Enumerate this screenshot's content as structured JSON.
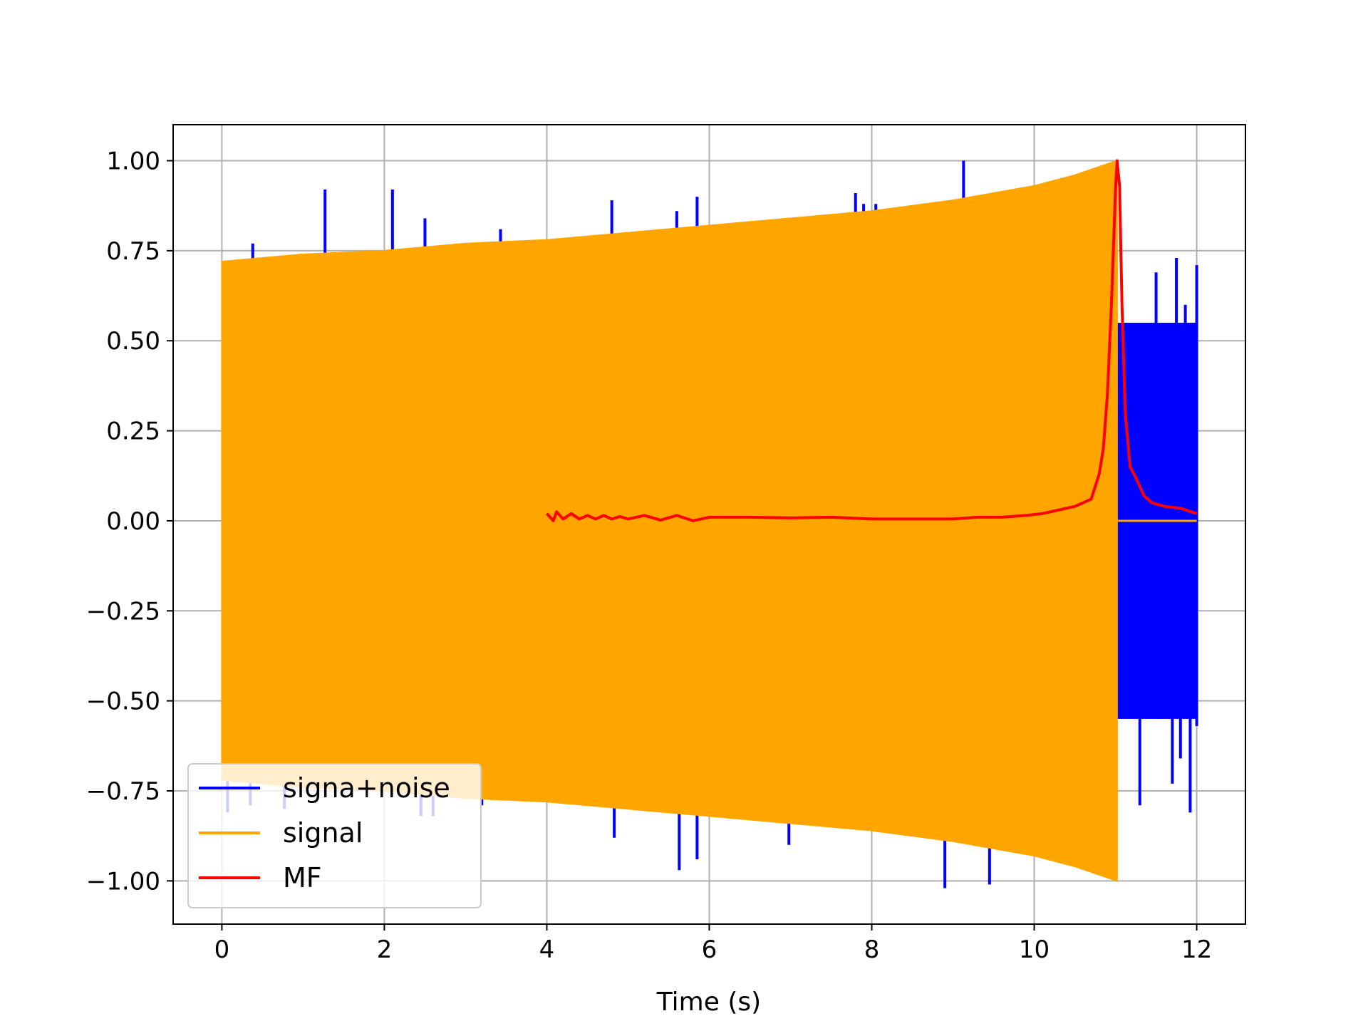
{
  "chart_data": {
    "type": "line",
    "title": "",
    "xlabel": "Time (s)",
    "ylabel": "",
    "xlim": [
      -0.6,
      12.6
    ],
    "ylim": [
      -1.12,
      1.1
    ],
    "xticks": [
      0,
      2,
      4,
      6,
      8,
      10,
      12
    ],
    "xtick_labels": [
      "0",
      "2",
      "4",
      "6",
      "8",
      "10",
      "12"
    ],
    "yticks": [
      1.0,
      0.75,
      0.5,
      0.25,
      0.0,
      -0.25,
      -0.5,
      -0.75,
      -1.0
    ],
    "ytick_labels": [
      "1.00",
      "0.75",
      "0.50",
      "0.25",
      "0.00",
      "−0.25",
      "−0.50",
      "−0.75",
      "−1.00"
    ],
    "grid": true,
    "legend_position": "lower-left",
    "series": [
      {
        "name": "signa+noise",
        "color": "#0000ff",
        "description_points": {
          "spikes_up": [
            [
              0.38,
              0.77
            ],
            [
              1.27,
              0.92
            ],
            [
              2.1,
              0.92
            ],
            [
              2.5,
              0.84
            ],
            [
              3.43,
              0.81
            ],
            [
              4.8,
              0.89
            ],
            [
              5.6,
              0.86
            ],
            [
              5.85,
              0.9
            ],
            [
              7.8,
              0.91
            ],
            [
              7.9,
              0.88
            ],
            [
              8.05,
              0.88
            ],
            [
              9.13,
              1.0
            ]
          ],
          "spikes_down": [
            [
              0.07,
              -0.81
            ],
            [
              0.35,
              -0.79
            ],
            [
              0.77,
              -0.8
            ],
            [
              2.45,
              -0.82
            ],
            [
              2.6,
              -0.82
            ],
            [
              3.2,
              -0.79
            ],
            [
              4.83,
              -0.88
            ],
            [
              5.63,
              -0.97
            ],
            [
              5.85,
              -0.94
            ],
            [
              6.98,
              -0.9
            ],
            [
              8.9,
              -1.02
            ],
            [
              9.45,
              -1.01
            ]
          ],
          "tail_start": 11.02,
          "tail_end": 12.0,
          "tail_peaks": [
            [
              11.05,
              0.5
            ],
            [
              11.12,
              -0.48
            ],
            [
              11.2,
              0.44
            ],
            [
              11.3,
              -0.79
            ],
            [
              11.37,
              0.51
            ],
            [
              11.45,
              -0.5
            ],
            [
              11.5,
              0.69
            ],
            [
              11.55,
              -0.55
            ],
            [
              11.6,
              0.52
            ],
            [
              11.7,
              -0.73
            ],
            [
              11.75,
              0.73
            ],
            [
              11.8,
              -0.66
            ],
            [
              11.86,
              0.6
            ],
            [
              11.92,
              -0.81
            ],
            [
              11.96,
              0.55
            ],
            [
              12.0,
              0.71
            ],
            [
              12.0,
              -0.57
            ]
          ]
        }
      },
      {
        "name": "signal",
        "color": "#ffa500",
        "envelope": {
          "x": [
            0.0,
            1,
            2,
            3,
            4,
            5,
            6,
            7,
            8,
            9,
            10,
            10.5,
            11.02
          ],
          "upper": [
            0.72,
            0.74,
            0.75,
            0.77,
            0.78,
            0.8,
            0.82,
            0.84,
            0.86,
            0.89,
            0.93,
            0.96,
            1.0
          ],
          "lower": [
            -0.72,
            -0.74,
            -0.75,
            -0.77,
            -0.78,
            -0.8,
            -0.82,
            -0.84,
            -0.86,
            -0.89,
            -0.93,
            -0.96,
            -1.0
          ]
        },
        "after": {
          "x": [
            11.02,
            12.0
          ],
          "y": [
            0.0,
            0.0
          ]
        }
      },
      {
        "name": "MF",
        "color": "#ff0000",
        "x": [
          4.0,
          4.08,
          4.12,
          4.2,
          4.3,
          4.4,
          4.5,
          4.6,
          4.7,
          4.8,
          4.9,
          5.0,
          5.2,
          5.4,
          5.6,
          5.8,
          6.0,
          6.5,
          7.0,
          7.5,
          8.0,
          8.5,
          9.0,
          9.3,
          9.6,
          9.9,
          10.1,
          10.3,
          10.5,
          10.6,
          10.7,
          10.8,
          10.85,
          10.9,
          10.95,
          11.0,
          11.02,
          11.05,
          11.08,
          11.12,
          11.18,
          11.25,
          11.35,
          11.45,
          11.6,
          11.8,
          12.0
        ],
        "y": [
          0.02,
          0.0,
          0.025,
          0.005,
          0.02,
          0.005,
          0.015,
          0.005,
          0.015,
          0.005,
          0.012,
          0.005,
          0.015,
          0.002,
          0.015,
          0.0,
          0.01,
          0.01,
          0.008,
          0.01,
          0.005,
          0.005,
          0.005,
          0.01,
          0.01,
          0.015,
          0.02,
          0.03,
          0.04,
          0.05,
          0.06,
          0.13,
          0.2,
          0.35,
          0.6,
          0.92,
          1.0,
          0.93,
          0.6,
          0.3,
          0.15,
          0.12,
          0.07,
          0.05,
          0.04,
          0.035,
          0.02
        ]
      }
    ],
    "legend": [
      "signa+noise",
      "signal",
      "MF"
    ]
  }
}
